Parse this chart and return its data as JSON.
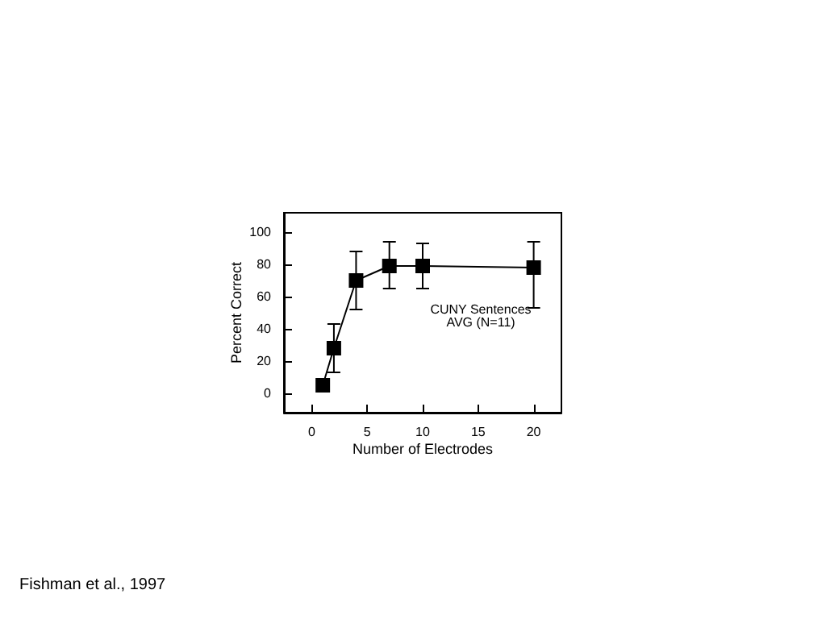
{
  "chart_data": {
    "type": "line",
    "xlabel": "Number of Electrodes",
    "ylabel": "Percent Correct",
    "x": [
      1,
      2,
      4,
      7,
      10,
      20
    ],
    "series": [
      {
        "color": "#000000",
        "values": [
          5,
          28,
          70,
          79,
          79,
          78
        ],
        "errors": [
          null,
          [
            13,
            43
          ],
          [
            52,
            88
          ],
          [
            65,
            94
          ],
          [
            65,
            93
          ],
          [
            53,
            94
          ]
        ]
      }
    ],
    "xlim": [
      -2.5,
      22.5
    ],
    "xticks": [
      0,
      5,
      10,
      15,
      20
    ],
    "ylim": [
      -12,
      112
    ],
    "yticks": [
      0,
      20,
      40,
      60,
      80,
      100
    ],
    "marker": "square",
    "line_style": "solid",
    "annotations": [
      "CUNY Sentences\nAVG (N=11)",
      "Fishman et al., 1997"
    ]
  }
}
